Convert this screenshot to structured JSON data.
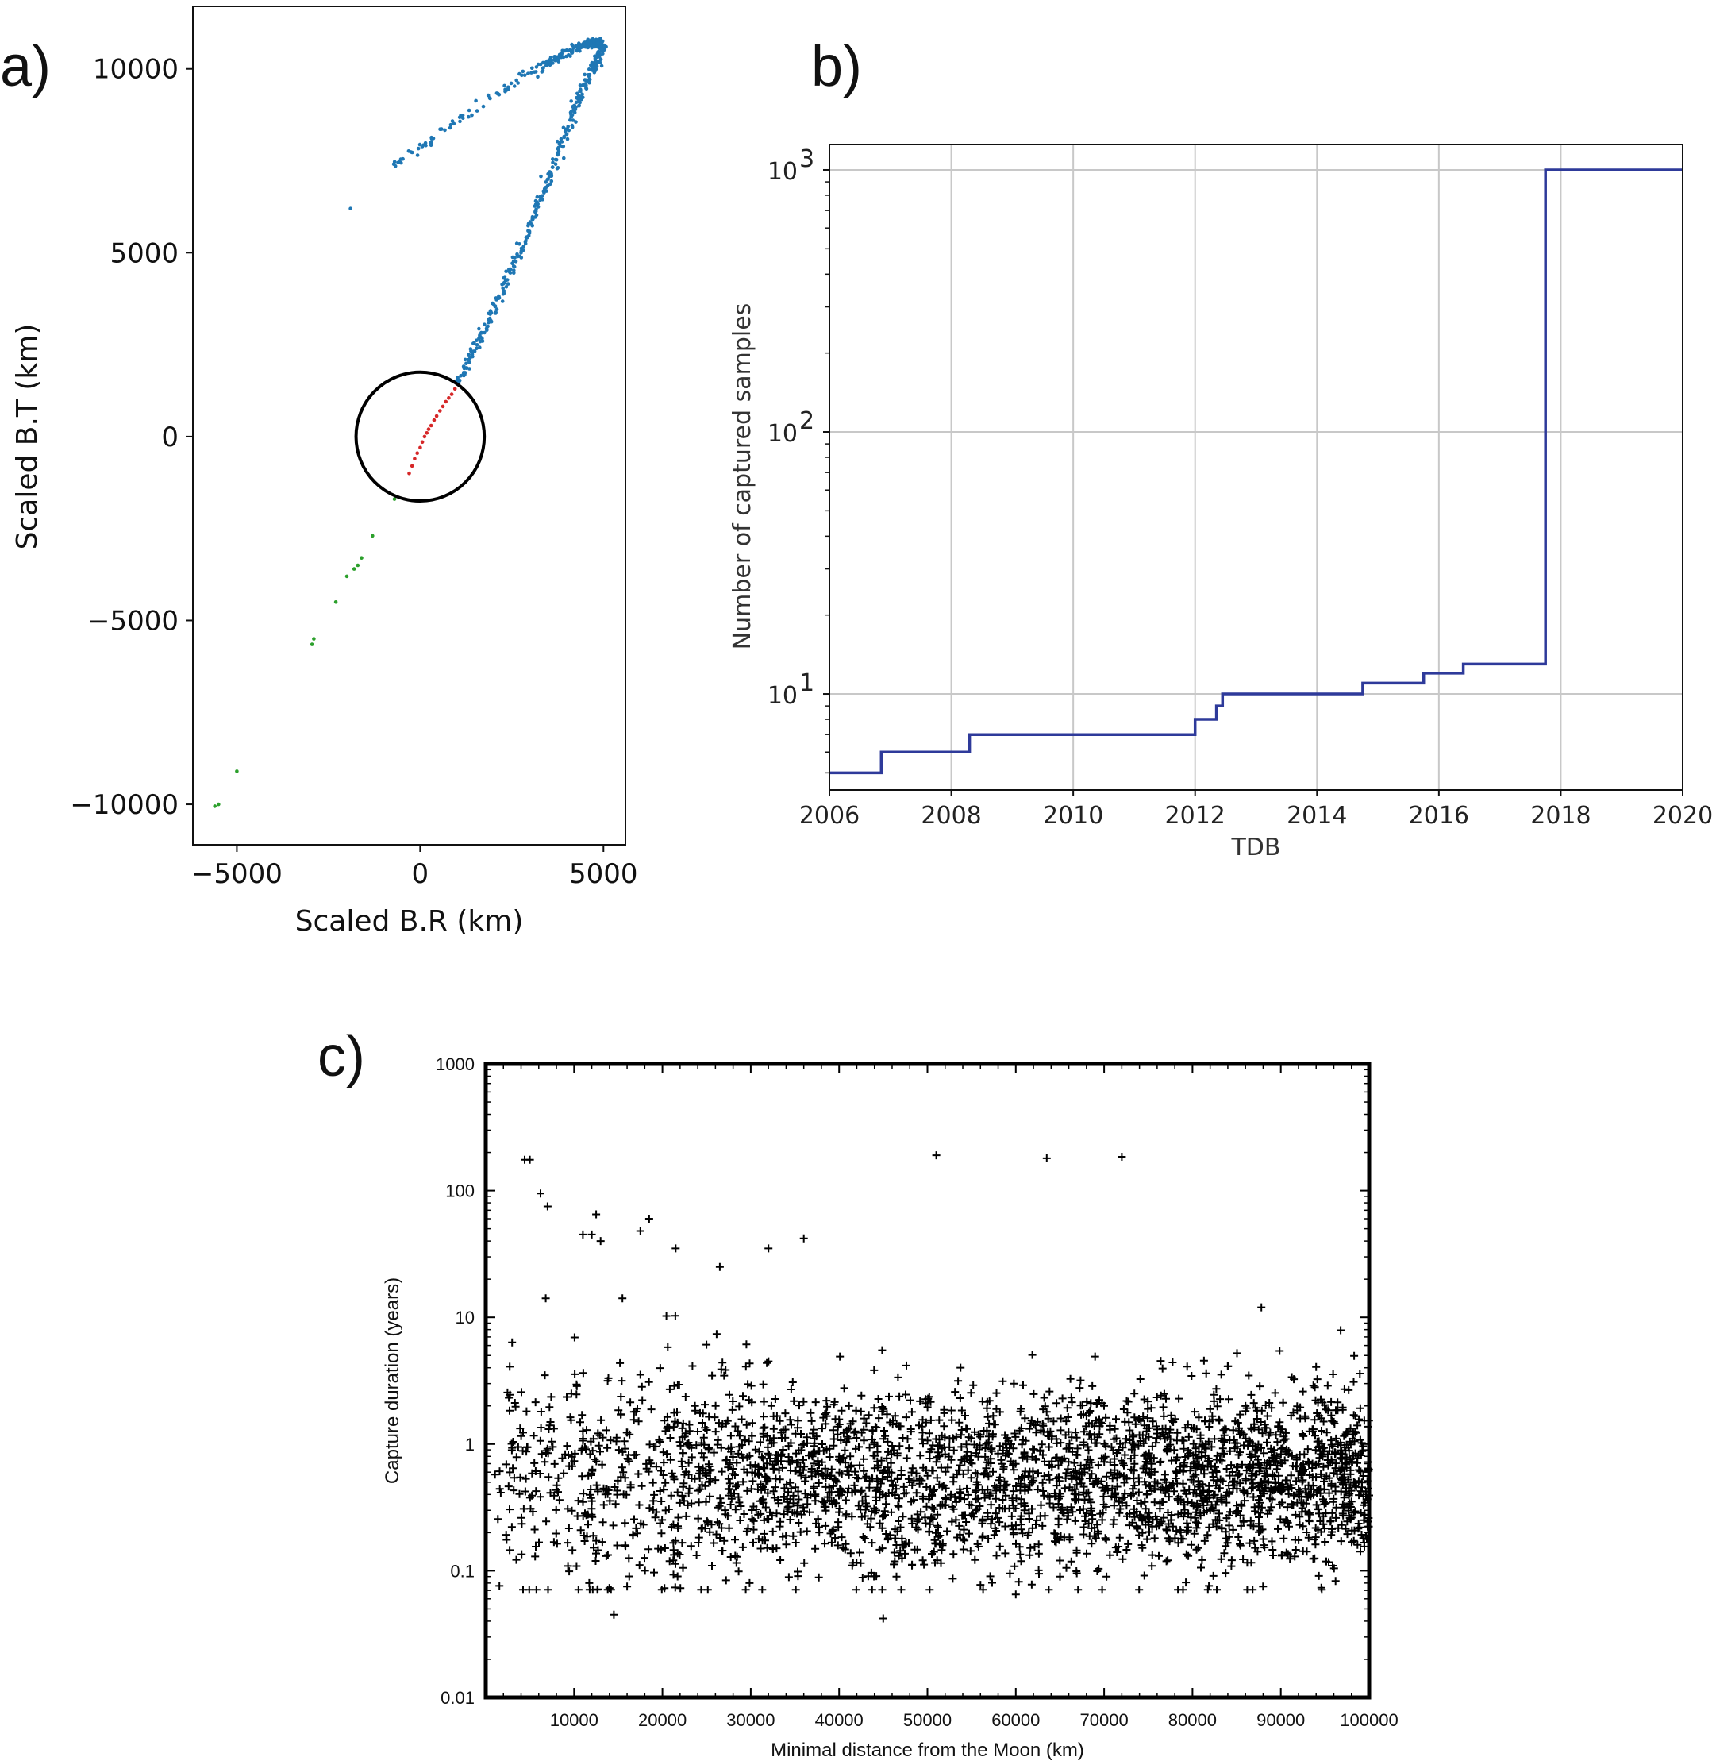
{
  "panel_labels": {
    "a": "a)",
    "b": "b)",
    "c": "c)"
  },
  "chart_data": [
    {
      "id": "a",
      "type": "scatter",
      "title": "",
      "xlabel": "Scaled B.R (km)",
      "ylabel": "Scaled B.T (km)",
      "xlim": [
        -6200,
        5600
      ],
      "ylim": [
        -11100,
        11700
      ],
      "xticks": [
        -5000,
        0,
        5000
      ],
      "xtick_labels": [
        "−5000",
        "0",
        "5000"
      ],
      "yticks": [
        -10000,
        -5000,
        0,
        5000,
        10000
      ],
      "ytick_labels": [
        "−10000",
        "−5000",
        "0",
        "5000",
        "10000"
      ],
      "grid": false,
      "circle": {
        "center": [
          0,
          0
        ],
        "radius": 1750,
        "color": "#000000"
      },
      "series": [
        {
          "color": "#1f77b4",
          "curve": [
            [
              1000,
              1400
            ],
            [
              1800,
              3000
            ],
            [
              2700,
              5000
            ],
            [
              3500,
              7000
            ],
            [
              4200,
              8900
            ],
            [
              4700,
              10000
            ],
            [
              5000,
              10600
            ],
            [
              4800,
              10700
            ],
            [
              4300,
              10600
            ],
            [
              3200,
              10000
            ],
            [
              1900,
              9200
            ],
            [
              500,
              8200
            ],
            [
              -700,
              7400
            ]
          ],
          "points": [
            [
              -1900,
              6200
            ],
            [
              -600,
              7450
            ]
          ]
        },
        {
          "color": "#d62728",
          "points": [
            [
              -300,
              -1000
            ],
            [
              -220,
              -800
            ],
            [
              -150,
              -600
            ],
            [
              -80,
              -450
            ],
            [
              0,
              -300
            ],
            [
              60,
              -150
            ],
            [
              120,
              0
            ],
            [
              180,
              100
            ],
            [
              230,
              200
            ],
            [
              300,
              300
            ],
            [
              380,
              450
            ],
            [
              450,
              560
            ],
            [
              540,
              700
            ],
            [
              620,
              820
            ],
            [
              700,
              950
            ],
            [
              780,
              1050
            ],
            [
              860,
              1150
            ],
            [
              950,
              1300
            ]
          ]
        },
        {
          "color": "#2ca02c",
          "points": [
            [
              -700,
              -1700
            ],
            [
              -1300,
              -2700
            ],
            [
              -1600,
              -3300
            ],
            [
              -1700,
              -3500
            ],
            [
              -1800,
              -3600
            ],
            [
              -2000,
              -3800
            ],
            [
              -2300,
              -4500
            ],
            [
              -2900,
              -5500
            ],
            [
              -2950,
              -5650
            ],
            [
              -5000,
              -9100
            ],
            [
              -5500,
              -10000
            ],
            [
              -5600,
              -10050
            ]
          ]
        }
      ]
    },
    {
      "id": "b",
      "type": "line",
      "title": "",
      "xlabel": "TDB",
      "ylabel": "Number of captured samples",
      "xlim": [
        2006,
        2020
      ],
      "xticks": [
        2006,
        2008,
        2010,
        2012,
        2014,
        2016,
        2018,
        2020
      ],
      "xtick_labels": [
        "2006",
        "2008",
        "2010",
        "2012",
        "2014",
        "2016",
        "2018",
        "2020"
      ],
      "yscale": "log",
      "ylim": [
        4.3,
        1250
      ],
      "yticks": [
        10,
        100,
        1000
      ],
      "ytick_labels": [
        [
          "10",
          "1"
        ],
        [
          "10",
          "2"
        ],
        [
          "10",
          "3"
        ]
      ],
      "grid": true,
      "color": "#2e3a9a",
      "step_x": [
        2006,
        2006.85,
        2008.3,
        2012.0,
        2012.35,
        2012.45,
        2014.75,
        2015.75,
        2016.4,
        2017.75,
        2020
      ],
      "step_y": [
        5,
        6,
        7,
        8,
        9,
        10,
        11,
        12,
        13,
        1000
      ]
    },
    {
      "id": "c",
      "type": "scatter",
      "title": "",
      "xlabel": "Minimal distance from the Moon (km)",
      "ylabel": "Capture duration (years)",
      "xlim": [
        0,
        100000
      ],
      "xticks": [
        10000,
        20000,
        30000,
        40000,
        50000,
        60000,
        70000,
        80000,
        90000,
        100000
      ],
      "xtick_labels": [
        "10000",
        "20000",
        "30000",
        "40000",
        "50000",
        "60000",
        "70000",
        "80000",
        "90000",
        "100000"
      ],
      "yscale": "log",
      "ylim": [
        0.01,
        1000
      ],
      "yticks": [
        0.01,
        0.1,
        1,
        10,
        100,
        1000
      ],
      "ytick_labels": [
        "0.01",
        "0.1",
        "1",
        "10",
        "100",
        "1000"
      ],
      "grid": false,
      "marker": "+",
      "color": "#000000",
      "outliers": [
        [
          4400,
          175
        ],
        [
          5000,
          175
        ],
        [
          51000,
          190
        ],
        [
          63500,
          180
        ],
        [
          72000,
          185
        ],
        [
          6200,
          95
        ],
        [
          7000,
          75
        ],
        [
          11000,
          45
        ],
        [
          12000,
          45
        ],
        [
          12500,
          65
        ],
        [
          13000,
          40
        ],
        [
          17500,
          48
        ],
        [
          18500,
          60
        ],
        [
          21500,
          35
        ],
        [
          26500,
          25
        ],
        [
          32000,
          35
        ],
        [
          36000,
          42
        ],
        [
          14500,
          0.045
        ],
        [
          45000,
          0.042
        ],
        [
          60000,
          0.065
        ],
        [
          16000,
          0.075
        ],
        [
          46500,
          0.09
        ],
        [
          65000,
          0.09
        ]
      ],
      "n_samples": 3000,
      "distribution": {
        "median_years": 0.55,
        "sigma_log10": 0.35
      }
    }
  ]
}
